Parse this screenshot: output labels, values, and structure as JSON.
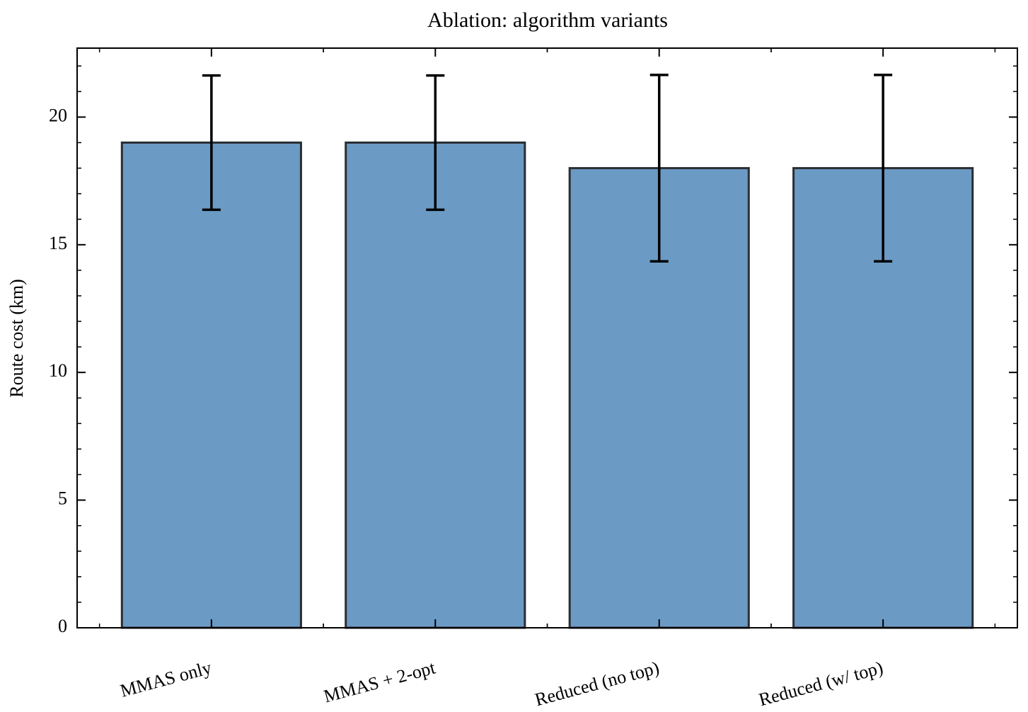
{
  "chart_data": {
    "type": "bar",
    "title": "Ablation: algorithm variants",
    "y_label": "Route cost (km)",
    "categories": [
      "MMAS only",
      "MMAS + 2-opt",
      "Reduced (no top)",
      "Reduced (w/ top)"
    ],
    "values": [
      19,
      19,
      18,
      18
    ],
    "errors": [
      2.63,
      2.63,
      3.65,
      3.65
    ],
    "color": "#6b9ac4",
    "edge_color": "#2a2e33",
    "ylim": [
      0,
      22.7
    ],
    "yticks": [
      0,
      5,
      10,
      15,
      20
    ],
    "grid": false
  }
}
